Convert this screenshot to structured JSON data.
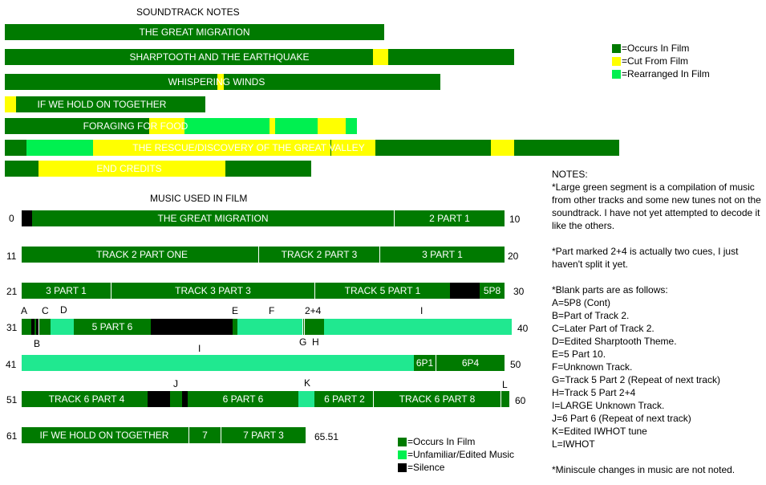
{
  "colors": {
    "dark_green": "#007a00",
    "yellow": "#ffff00",
    "bright_green": "#00f050",
    "mint": "#20e890",
    "black": "#000000"
  },
  "soundtrack": {
    "title": "SOUNDTRACK NOTES",
    "legend": [
      "=Occurs In Film",
      "=Cut From Film",
      "=Rearranged In Film"
    ],
    "tracks": [
      {
        "label": "THE GREAT MIGRATION",
        "status": [
          "occurs"
        ]
      },
      {
        "label": "SHARPTOOTH AND THE EARTHQUAKE",
        "status": [
          "occurs",
          "cut",
          "occurs"
        ]
      },
      {
        "label": "WHISPERING WINDS",
        "status": [
          "occurs",
          "cut"
        ]
      },
      {
        "label": "IF WE HOLD ON TOGETHER",
        "status": [
          "cut",
          "occurs"
        ]
      },
      {
        "label": "FORAGING FOR FOOD",
        "status": [
          "occurs",
          "cut",
          "rearranged",
          "cut",
          "rearranged",
          "cut",
          "rearranged"
        ]
      },
      {
        "label": "THE RESCUE/DISCOVERY OF THE GREAT VALLEY",
        "status": [
          "occurs",
          "rearranged",
          "cut",
          "occurs",
          "cut",
          "occurs",
          "cut",
          "occurs"
        ]
      },
      {
        "label": "END CREDITS",
        "status": [
          "occurs",
          "cut",
          "occurs"
        ]
      }
    ]
  },
  "film_music": {
    "title": "MUSIC USED IN FILM",
    "legend": [
      "=Occurs In Film",
      "=Unfamiliar/Edited Music",
      "=Silence"
    ],
    "row_start_labels": [
      "0",
      "11",
      "21",
      "31",
      "41",
      "51",
      "61"
    ],
    "row_end_labels": [
      "10",
      "20",
      "30",
      "40",
      "50",
      "60",
      "65.51"
    ],
    "segment_labels": {
      "r0": [
        "THE GREAT MIGRATION",
        "2 PART 1"
      ],
      "r1": [
        "TRACK 2 PART ONE",
        "TRACK 2 PART 3",
        "3 PART 1"
      ],
      "r2": [
        "3 PART 1",
        "TRACK 3 PART 3",
        "TRACK 5 PART 1",
        "5P8"
      ],
      "r3": [
        "5 PART 6"
      ],
      "r4": [
        "6P1",
        "6P4"
      ],
      "r5": [
        "TRACK 6 PART 4",
        "6 PART 6",
        "6 PART 2",
        "TRACK 6 PART 8"
      ],
      "r6": [
        "IF WE HOLD ON TOGETHER",
        "7",
        "7 PART 3"
      ]
    },
    "markers": {
      "row3_top": [
        "A",
        "C",
        "D",
        "E",
        "F",
        "2+4",
        "I"
      ],
      "row3_bottom": [
        "B",
        "G",
        "H"
      ],
      "row4_top": [
        "I"
      ],
      "row5_top": [
        "J",
        "K",
        "L"
      ]
    }
  },
  "notes": {
    "heading": "NOTES:",
    "paragraphs": [
      "*Large green segment is a compilation of music from other tracks and some new tunes not on the soundtrack. I have not yet attempted to decode it like the others.",
      "*Part marked 2+4 is actually two cues, I just haven't split it yet.",
      "*Blank parts are as follows:"
    ],
    "blank_parts": [
      "A=5P8 (Cont)",
      "B=Part of Track 2.",
      "C=Later Part of Track 2.",
      "D=Edited Sharptooth Theme.",
      "E=5 Part 10.",
      "F=Unknown Track.",
      "G=Track 5 Part 2 (Repeat of next track)",
      "H=Track 5 Part 2+4",
      "I=LARGE Unknown Track.",
      "J=6 Part 6 (Repeat of next track)",
      "K=Edited IWHOT tune",
      "L=IWHOT"
    ],
    "footer": "*Miniscule changes in music are not noted."
  }
}
